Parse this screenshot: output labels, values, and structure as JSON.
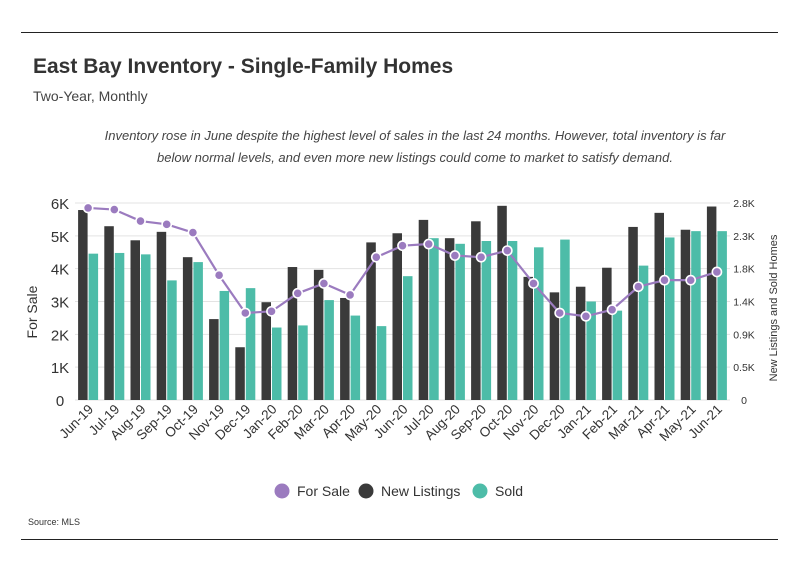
{
  "title": "East Bay Inventory - Single-Family Homes",
  "subtitle": "Two-Year, Monthly",
  "annotation": "Inventory rose in June despite the highest level of sales in the last 24 months. However, total inventory is far below normal levels, and even more new listings could come to market to satisfy demand.",
  "source": "Source:  MLS",
  "colors": {
    "for_sale": "#9b7bbf",
    "new_listings": "#3a3a3a",
    "sold": "#4dbca8"
  },
  "chart_data": {
    "type": "bar",
    "categories": [
      "Jun-19",
      "Jul-19",
      "Aug-19",
      "Sep-19",
      "Oct-19",
      "Nov-19",
      "Dec-19",
      "Jan-20",
      "Feb-20",
      "Mar-20",
      "Apr-20",
      "May-20",
      "Jun-20",
      "Jul-20",
      "Aug-20",
      "Sep-20",
      "Oct-20",
      "Nov-20",
      "Dec-20",
      "Jan-21",
      "Feb-21",
      "Mar-21",
      "Apr-21",
      "May-21",
      "Jun-21"
    ],
    "left_axis": {
      "label": "For Sale",
      "ticks": [
        "0",
        "1K",
        "2K",
        "3K",
        "4K",
        "5K",
        "6K"
      ],
      "range": [
        0,
        6000
      ]
    },
    "right_axis": {
      "label": "New Listings and Sold Homes",
      "ticks": [
        "0",
        "0.5K",
        "0.9K",
        "1.4K",
        "1.8K",
        "2.3K",
        "2.8K"
      ],
      "range": [
        0,
        2800
      ]
    },
    "series": [
      {
        "name": "For Sale",
        "axis": "left",
        "kind": "line",
        "values": [
          5850,
          5800,
          5450,
          5350,
          5100,
          3800,
          2650,
          2700,
          3250,
          3550,
          3200,
          4350,
          4700,
          4750,
          4400,
          4350,
          4550,
          3550,
          2650,
          2550,
          2750,
          3450,
          3650,
          3650,
          3900
        ]
      },
      {
        "name": "New Listings",
        "axis": "right",
        "kind": "bar",
        "values": [
          2700,
          2470,
          2270,
          2390,
          2030,
          1150,
          750,
          1390,
          1890,
          1850,
          1450,
          2240,
          2370,
          2560,
          2300,
          2540,
          2760,
          1750,
          1530,
          1610,
          1880,
          2460,
          2660,
          2420,
          2750
        ]
      },
      {
        "name": "Sold",
        "axis": "right",
        "kind": "bar",
        "values": [
          2080,
          2090,
          2070,
          1700,
          1960,
          1550,
          1590,
          1030,
          1060,
          1420,
          1200,
          1050,
          1760,
          2300,
          2220,
          2260,
          2260,
          2170,
          2280,
          1400,
          1270,
          1910,
          2310,
          2400,
          2400
        ]
      }
    ],
    "legend": {
      "position": "bottom",
      "entries": [
        "For Sale",
        "New Listings",
        "Sold"
      ]
    },
    "grid": true
  }
}
